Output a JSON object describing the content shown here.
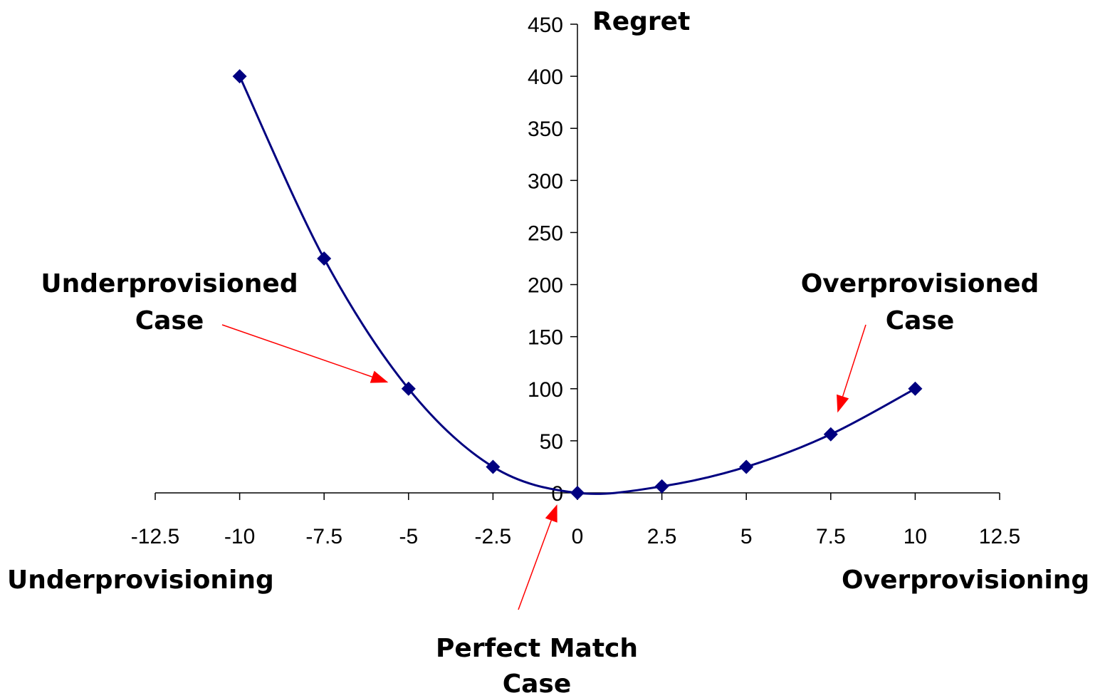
{
  "chart_data": {
    "type": "line",
    "title": "",
    "xlabel_left": "Underprovisioning",
    "xlabel_right": "Overprovisioning",
    "ylabel": "Regret",
    "xlim": [
      -12.5,
      12.5
    ],
    "ylim": [
      0,
      450
    ],
    "x_ticks": [
      -12.5,
      -10,
      -7.5,
      -5,
      -2.5,
      0,
      2.5,
      5,
      7.5,
      10,
      12.5
    ],
    "x_tick_labels": [
      "-12.5",
      "-10",
      "-7.5",
      "-5",
      "-2.5",
      "0",
      "2.5",
      "5",
      "7.5",
      "10",
      "12.5"
    ],
    "y_ticks": [
      0,
      50,
      100,
      150,
      200,
      250,
      300,
      350,
      400,
      450
    ],
    "y_tick_labels": [
      "0",
      "50",
      "100",
      "150",
      "200",
      "250",
      "300",
      "350",
      "400",
      "450"
    ],
    "grid": false,
    "series": [
      {
        "color": "#000080",
        "marker": "diamond",
        "x": [
          -10,
          -7.5,
          -5,
          -2.5,
          0,
          2.5,
          5,
          7.5,
          10
        ],
        "y": [
          400,
          225,
          100,
          25,
          0,
          6.25,
          25,
          56.25,
          100
        ]
      }
    ],
    "annotations": [
      {
        "lines": [
          "Underprovisioned",
          "Case"
        ],
        "target": [
          -5.6,
          106
        ]
      },
      {
        "lines": [
          "Overprovisioned",
          "Case"
        ],
        "target": [
          7.7,
          77
        ]
      },
      {
        "lines": [
          "Perfect Match",
          "Case"
        ],
        "target": [
          -0.6,
          -11
        ]
      }
    ],
    "arrow_color": "#ff0000"
  }
}
